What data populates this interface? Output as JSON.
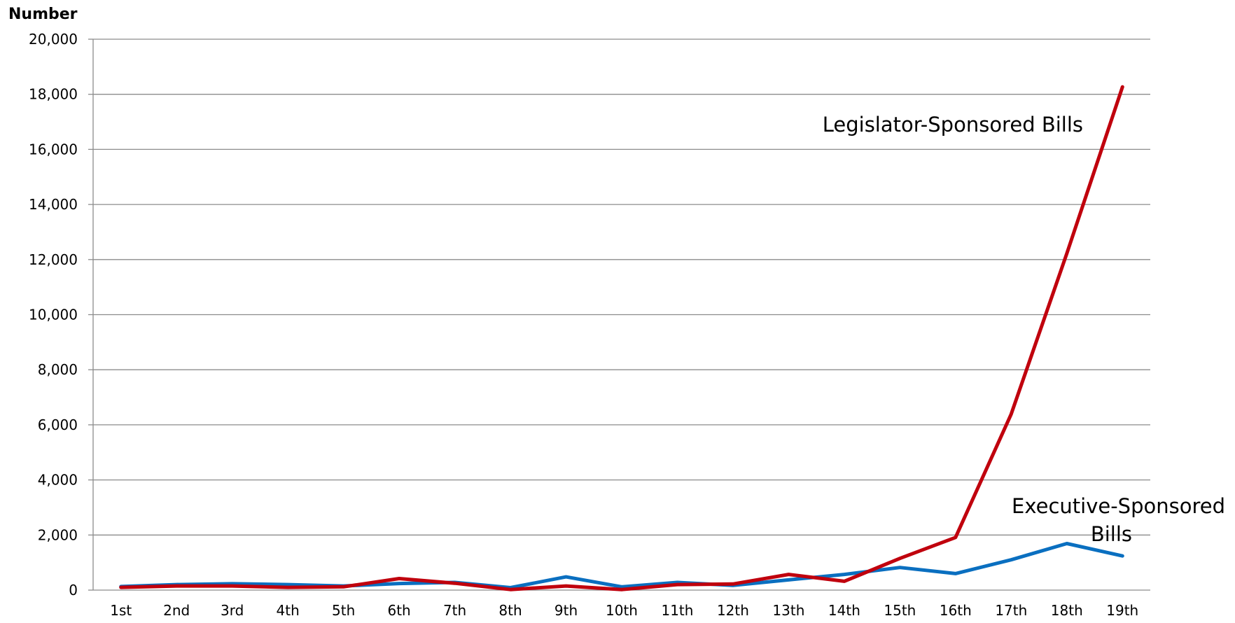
{
  "chart_data": {
    "type": "line",
    "title": "",
    "xlabel": "",
    "ylabel": "Number",
    "ylim": [
      0,
      20000
    ],
    "yticks": [
      0,
      2000,
      4000,
      6000,
      8000,
      10000,
      12000,
      14000,
      16000,
      18000,
      20000
    ],
    "ytick_labels": [
      "0",
      "2,000",
      "4,000",
      "6,000",
      "8,000",
      "10,000",
      "12,000",
      "14,000",
      "16,000",
      "18,000",
      "20,000"
    ],
    "grid": true,
    "legend": "none",
    "categories": [
      "1st",
      "2nd",
      "3rd",
      "4th",
      "5th",
      "6th",
      "7th",
      "8th",
      "9th",
      "10th",
      "11th",
      "12th",
      "13th",
      "14th",
      "15th",
      "16th",
      "17th",
      "18th",
      "19th"
    ],
    "series": [
      {
        "name": "Legislator-Sponsored Bills",
        "color": "#c0000d",
        "values": [
          100,
          150,
          150,
          100,
          120,
          420,
          250,
          20,
          150,
          20,
          200,
          220,
          570,
          320,
          1150,
          1910,
          6390,
          12220,
          18270
        ]
      },
      {
        "name": "Executive-Sponsored Bills",
        "color": "#0a6fc0",
        "values": [
          130,
          200,
          230,
          200,
          150,
          240,
          280,
          90,
          480,
          120,
          280,
          170,
          370,
          570,
          820,
          600,
          1100,
          1690,
          1240
        ]
      }
    ],
    "annotations": [
      {
        "text": "Legislator-Sponsored  Bills",
        "series": 0
      },
      {
        "lines": [
          "Executive-Sponsored",
          "Bills"
        ],
        "series": 1
      }
    ]
  }
}
